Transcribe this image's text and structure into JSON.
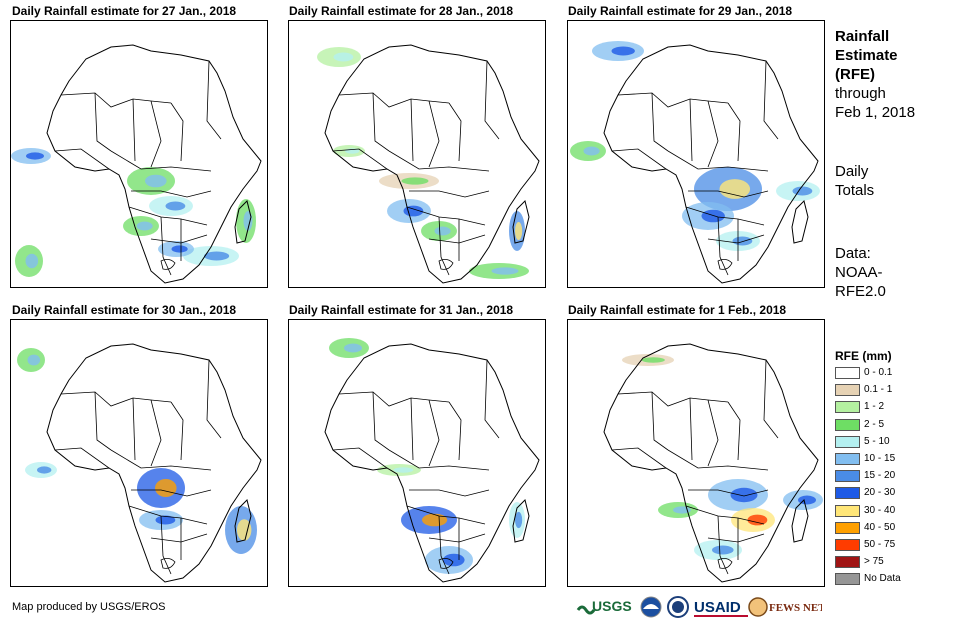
{
  "panels": [
    {
      "title": "Daily Rainfall estimate for 27 Jan., 2018"
    },
    {
      "title": "Daily Rainfall estimate for 28 Jan., 2018"
    },
    {
      "title": "Daily Rainfall estimate for 29 Jan., 2018"
    },
    {
      "title": "Daily Rainfall estimate for 30 Jan., 2018"
    },
    {
      "title": "Daily Rainfall estimate for 31 Jan., 2018"
    },
    {
      "title": "Daily Rainfall estimate for 1 Feb., 2018"
    }
  ],
  "sidebar": {
    "title_line1": "Rainfall",
    "title_line2": "Estimate",
    "title_line3": "(RFE)",
    "through": "through",
    "date": "Feb 1, 2018",
    "daily_line1": "Daily",
    "daily_line2": "Totals",
    "data_line1": "Data:",
    "data_line2": "NOAA-",
    "data_line3": "RFE2.0"
  },
  "legend": {
    "title": "RFE (mm)",
    "items": [
      {
        "label": "0 - 0.1",
        "color": "#ffffff"
      },
      {
        "label": "0.1 - 1",
        "color": "#e6d2b4"
      },
      {
        "label": "1 - 2",
        "color": "#b4f0a0"
      },
      {
        "label": "2 - 5",
        "color": "#6ede64"
      },
      {
        "label": "5 - 10",
        "color": "#b4f0f0"
      },
      {
        "label": "10 - 15",
        "color": "#82bef0"
      },
      {
        "label": "15 - 20",
        "color": "#4a8ce6"
      },
      {
        "label": "20 - 30",
        "color": "#1e5ae6"
      },
      {
        "label": "30 - 40",
        "color": "#ffe678"
      },
      {
        "label": "40 - 50",
        "color": "#ffa000"
      },
      {
        "label": "50 - 75",
        "color": "#ff3c00"
      },
      {
        "label": "> 75",
        "color": "#a01414"
      },
      {
        "label": "No Data",
        "color": "#969696"
      }
    ]
  },
  "footer": {
    "credit": "Map produced by USGS/EROS"
  },
  "logos": {
    "usgs": "USGS",
    "usaid": "USAID",
    "fewsnet": "FEWS NET"
  }
}
